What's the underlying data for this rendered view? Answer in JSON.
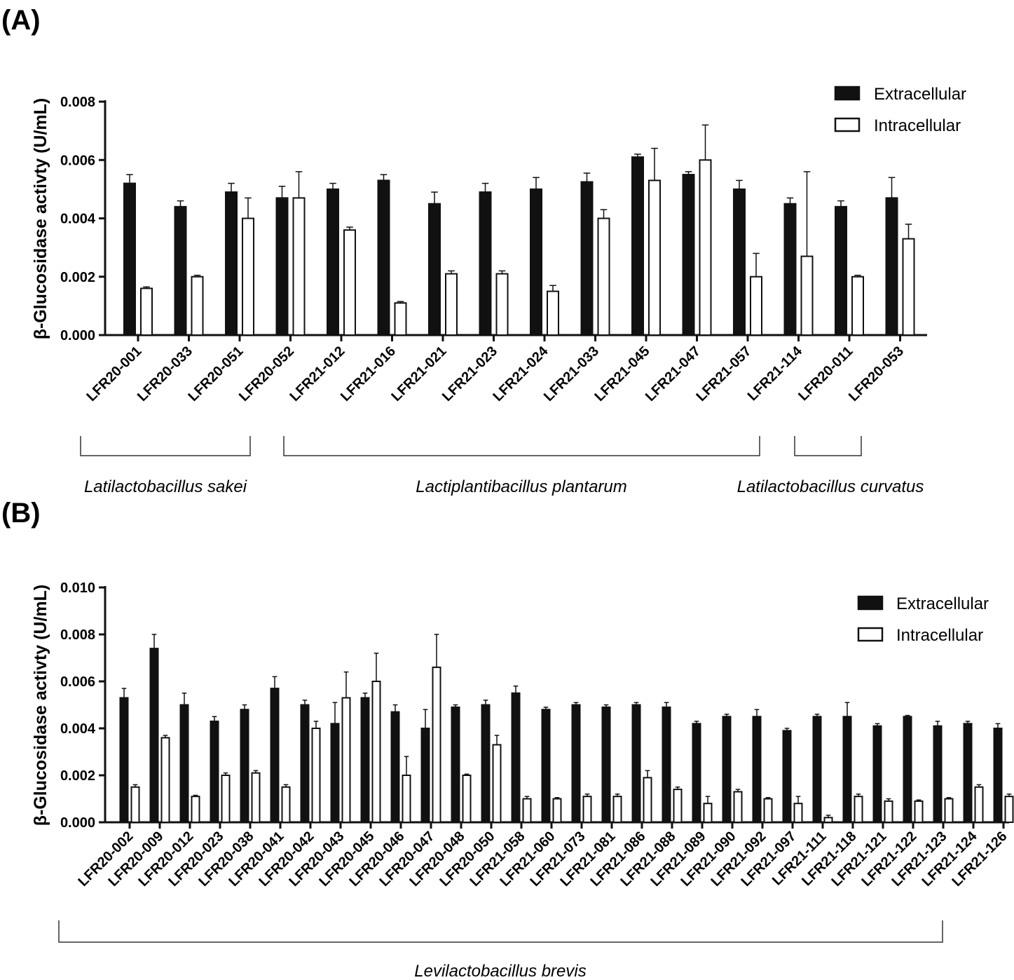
{
  "chart_data": [
    {
      "panel": "(A)",
      "type": "bar",
      "ylabel": "β-Glucosidase activty (U/mL)",
      "ylim": [
        0,
        0.008
      ],
      "yticks": [
        "0.000",
        "0.002",
        "0.004",
        "0.006",
        "0.008"
      ],
      "legend": [
        "Extracellular",
        "Intracellular"
      ],
      "categories": [
        "LFR20-001",
        "LFR20-033",
        "LFR20-051",
        "LFR20-052",
        "LFR21-012",
        "LFR21-016",
        "LFR21-021",
        "LFR21-023",
        "LFR21-024",
        "LFR21-033",
        "LFR21-045",
        "LFR21-047",
        "LFR21-057",
        "LFR21-114",
        "LFR20-011",
        "LFR20-053"
      ],
      "series": [
        {
          "name": "Extracellular",
          "values": [
            0.0052,
            0.0044,
            0.0049,
            0.0047,
            0.005,
            0.0053,
            0.0045,
            0.0049,
            0.005,
            0.00525,
            0.0061,
            0.0055,
            0.005,
            0.0045,
            0.0044,
            0.0047
          ],
          "errors": [
            0.0003,
            0.0002,
            0.0003,
            0.0004,
            0.0002,
            0.0002,
            0.0004,
            0.0003,
            0.0004,
            0.0003,
            0.0001,
            0.0001,
            0.0003,
            0.0002,
            0.0002,
            0.0007
          ]
        },
        {
          "name": "Intracellular",
          "values": [
            0.0016,
            0.002,
            0.004,
            0.0047,
            0.0036,
            0.0011,
            0.0021,
            0.0021,
            0.0015,
            0.004,
            0.0053,
            0.006,
            0.002,
            0.0027,
            0.002,
            0.0033
          ],
          "errors": [
            5e-05,
            5e-05,
            0.0007,
            0.0009,
            0.0001,
            5e-05,
            0.0001,
            0.0001,
            0.0002,
            0.0003,
            0.0011,
            0.0012,
            0.0008,
            0.0029,
            5e-05,
            0.0005
          ]
        }
      ],
      "groups": [
        {
          "label": "Latilactobacillus sakei",
          "from": 0,
          "to": 3
        },
        {
          "label": "Lactiplantibacillus plantarum",
          "from": 4,
          "to": 13
        },
        {
          "label": "Latilactobacillus curvatus",
          "from": 14,
          "to": 15
        }
      ]
    },
    {
      "panel": "(B)",
      "type": "bar",
      "ylabel": "β-Glucosidase activty (U/mL)",
      "ylim": [
        0,
        0.01
      ],
      "yticks": [
        "0.000",
        "0.002",
        "0.004",
        "0.006",
        "0.008",
        "0.010"
      ],
      "legend": [
        "Extracellular",
        "Intracellular"
      ],
      "categories": [
        "LFR20-002",
        "LFR20-009",
        "LFR20-012",
        "LFR20-023",
        "LFR20-038",
        "LFR20-041",
        "LFR20-042",
        "LFR20-043",
        "LFR20-045",
        "LFR20-046",
        "LFR20-047",
        "LFR20-048",
        "LFR20-050",
        "LFR21-058",
        "LFR21-060",
        "LFR21-073",
        "LFR21-081",
        "LFR21-086",
        "LFR21-088",
        "LFR21-089",
        "LFR21-090",
        "LFR21-092",
        "LFR21-097",
        "LFR21-111",
        "LFR21-118",
        "LFR21-121",
        "LFR21-122",
        "LFR21-123",
        "LFR21-124",
        "LFR21-126"
      ],
      "series": [
        {
          "name": "Extracellular",
          "values": [
            0.0053,
            0.0074,
            0.005,
            0.0043,
            0.0048,
            0.0057,
            0.005,
            0.0042,
            0.0053,
            0.0047,
            0.004,
            0.0049,
            0.005,
            0.0055,
            0.0048,
            0.005,
            0.0049,
            0.005,
            0.0049,
            0.0042,
            0.0045,
            0.0045,
            0.0039,
            0.0045,
            0.0045,
            0.0041,
            0.0045,
            0.0041,
            0.0042,
            0.004
          ],
          "errors": [
            0.0004,
            0.0006,
            0.0005,
            0.0002,
            0.0002,
            0.0005,
            0.0002,
            0.0009,
            0.0002,
            0.0003,
            0.0008,
            0.0001,
            0.0002,
            0.0003,
            0.0001,
            0.0001,
            0.0001,
            0.0001,
            0.0002,
            0.0001,
            0.0001,
            0.0003,
            0.0001,
            0.0001,
            0.0006,
            0.0001,
            5e-05,
            0.0002,
            0.0001,
            0.0002
          ]
        },
        {
          "name": "Intracellular",
          "values": [
            0.0015,
            0.0036,
            0.0011,
            0.002,
            0.0021,
            0.0015,
            0.004,
            0.0053,
            0.006,
            0.002,
            0.0066,
            0.002,
            0.0033,
            0.001,
            0.001,
            0.0011,
            0.0011,
            0.0019,
            0.0014,
            0.0008,
            0.0013,
            0.001,
            0.0008,
            0.0002,
            0.0011,
            0.0009,
            0.0009,
            0.001,
            0.0015,
            0.0011
          ],
          "errors": [
            0.0001,
            0.0001,
            5e-05,
            0.0001,
            0.0001,
            0.0001,
            0.0003,
            0.0011,
            0.0012,
            0.0008,
            0.0014,
            5e-05,
            0.0004,
            0.0001,
            5e-05,
            0.0001,
            0.0001,
            0.0003,
            0.0001,
            0.0003,
            0.0001,
            5e-05,
            0.0003,
            0.0001,
            0.0001,
            0.0001,
            5e-05,
            5e-05,
            0.0001,
            0.0001
          ]
        }
      ],
      "groups": [
        {
          "label": "Levilactobacillus brevis",
          "from": 0,
          "to": 29
        }
      ]
    }
  ]
}
